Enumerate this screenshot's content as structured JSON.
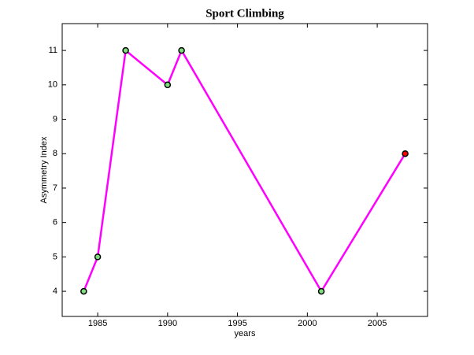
{
  "chart_data": {
    "type": "line",
    "title": "Sport Climbing",
    "x_label": "years",
    "y_label": "Asymmetry Index",
    "x": [
      1984,
      1985,
      1987,
      1990,
      1991,
      2001,
      2007
    ],
    "series": [
      {
        "name": "Sport Climbing",
        "color": "#ff00ff",
        "marker_edge_color": "#000000",
        "marker_face_colors": [
          "#7fe07f",
          "#7fe07f",
          "#7fe07f",
          "#7fe07f",
          "#7fe07f",
          "#7fe07f",
          "#ff0000"
        ],
        "values": [
          4,
          5,
          11,
          10,
          11,
          4,
          8
        ]
      }
    ],
    "xlim": [
      1982.46,
      2008.6
    ],
    "xticks": [
      1985,
      1990,
      1995,
      2000,
      2005
    ],
    "ylim": [
      3.27,
      11.78
    ],
    "yticks": [
      4,
      5,
      6,
      7,
      8,
      9,
      10,
      11
    ],
    "grid": false,
    "box": true
  }
}
